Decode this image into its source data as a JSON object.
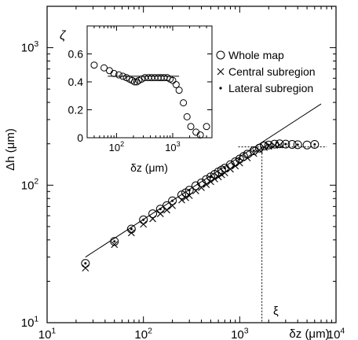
{
  "chart_data": [
    {
      "type": "scatter",
      "xscale": "log",
      "yscale": "log",
      "xlim": [
        10,
        10000
      ],
      "ylim": [
        10,
        2000
      ],
      "xlabel": "δz (μm)",
      "ylabel": "Δh (μm)",
      "xticks": [
        {
          "value": 10,
          "base": "10",
          "exp": "1"
        },
        {
          "value": 100,
          "base": "10",
          "exp": "2"
        },
        {
          "value": 1000,
          "base": "10",
          "exp": "3"
        },
        {
          "value": 10000,
          "base": "10",
          "exp": "4"
        }
      ],
      "yticks": [
        {
          "value": 10,
          "base": "10",
          "exp": "1"
        },
        {
          "value": 100,
          "base": "10",
          "exp": "2"
        },
        {
          "value": 1000,
          "base": "10",
          "exp": "3"
        }
      ],
      "legend": {
        "placement": "top-right",
        "entries": [
          "Whole map",
          "Central subregion",
          "Lateral subregion"
        ]
      },
      "series": [
        {
          "name": "Whole map",
          "marker": "circle",
          "points": [
            [
              25,
              27
            ],
            [
              50,
              39
            ],
            [
              75,
              48
            ],
            [
              100,
              56
            ],
            [
              125,
              62
            ],
            [
              150,
              67
            ],
            [
              175,
              71
            ],
            [
              200,
              77
            ],
            [
              250,
              85
            ],
            [
              275,
              88
            ],
            [
              300,
              92
            ],
            [
              350,
              99
            ],
            [
              400,
              104
            ],
            [
              450,
              110
            ],
            [
              500,
              115
            ],
            [
              550,
              120
            ],
            [
              600,
              125
            ],
            [
              650,
              129
            ],
            [
              700,
              133
            ],
            [
              800,
              141
            ],
            [
              900,
              148
            ],
            [
              1000,
              155
            ],
            [
              1100,
              162
            ],
            [
              1200,
              168
            ],
            [
              1400,
              178
            ],
            [
              1600,
              186
            ],
            [
              1800,
              193
            ],
            [
              2000,
              196
            ],
            [
              2300,
              199
            ],
            [
              2600,
              200
            ],
            [
              3000,
              199
            ],
            [
              3500,
              198
            ],
            [
              4000,
              197
            ],
            [
              5000,
              196
            ],
            [
              6000,
              198
            ]
          ]
        },
        {
          "name": "Central subregion",
          "marker": "cross",
          "points": [
            [
              25,
              25
            ],
            [
              50,
              37
            ],
            [
              75,
              45
            ],
            [
              100,
              52
            ],
            [
              125,
              57
            ],
            [
              150,
              62
            ],
            [
              175,
              66
            ],
            [
              200,
              71
            ],
            [
              250,
              78
            ],
            [
              275,
              81
            ],
            [
              300,
              84
            ],
            [
              350,
              91
            ],
            [
              400,
              96
            ],
            [
              450,
              101
            ],
            [
              500,
              106
            ],
            [
              550,
              111
            ],
            [
              600,
              115
            ],
            [
              650,
              119
            ],
            [
              700,
              123
            ],
            [
              800,
              131
            ],
            [
              900,
              138
            ],
            [
              1000,
              145
            ],
            [
              1200,
              158
            ],
            [
              1400,
              170
            ],
            [
              1600,
              180
            ],
            [
              1800,
              188
            ],
            [
              2000,
              192
            ],
            [
              2300,
              195
            ],
            [
              2600,
              196
            ]
          ]
        },
        {
          "name": "Lateral subregion",
          "marker": "dot",
          "points": [
            [
              25,
              27
            ],
            [
              50,
              39
            ],
            [
              75,
              48
            ],
            [
              100,
              56
            ],
            [
              150,
              67
            ],
            [
              200,
              77
            ],
            [
              300,
              92
            ],
            [
              500,
              115
            ],
            [
              700,
              133
            ],
            [
              1000,
              155
            ],
            [
              1400,
              178
            ],
            [
              2000,
              196
            ],
            [
              3000,
              199
            ],
            [
              4000,
              197
            ],
            [
              6000,
              198
            ]
          ]
        }
      ],
      "fit_line": {
        "x": [
          25,
          7000
        ],
        "y": [
          30,
          390
        ]
      },
      "crossover": {
        "label": "ξ",
        "x": 1700,
        "y": 190,
        "plateau_x_end": 8000
      }
    },
    {
      "type": "scatter",
      "inset": true,
      "xscale": "log",
      "yscale": "linear",
      "xlim": [
        30,
        5000
      ],
      "ylim": [
        0,
        0.8
      ],
      "xlabel": "δz (μm)",
      "ylabel": "ζ",
      "xticks": [
        {
          "value": 100,
          "base": "10",
          "exp": "2"
        },
        {
          "value": 1000,
          "base": "10",
          "exp": "3"
        }
      ],
      "yticks": [
        {
          "value": 0,
          "label": "0"
        },
        {
          "value": 0.2,
          "label": "0.2"
        },
        {
          "value": 0.4,
          "label": "0.4"
        },
        {
          "value": 0.6,
          "label": "0.6"
        }
      ],
      "series": [
        {
          "marker": "circle",
          "points": [
            [
              40,
              0.52
            ],
            [
              60,
              0.5
            ],
            [
              75,
              0.48
            ],
            [
              90,
              0.46
            ],
            [
              110,
              0.45
            ],
            [
              130,
              0.44
            ],
            [
              150,
              0.43
            ],
            [
              170,
              0.42
            ],
            [
              190,
              0.41
            ],
            [
              210,
              0.4
            ],
            [
              230,
              0.4
            ],
            [
              250,
              0.41
            ],
            [
              280,
              0.42
            ],
            [
              320,
              0.43
            ],
            [
              370,
              0.43
            ],
            [
              420,
              0.43
            ],
            [
              480,
              0.43
            ],
            [
              550,
              0.43
            ],
            [
              620,
              0.43
            ],
            [
              700,
              0.43
            ],
            [
              800,
              0.43
            ],
            [
              900,
              0.42
            ],
            [
              1000,
              0.41
            ],
            [
              1150,
              0.38
            ],
            [
              1300,
              0.34
            ],
            [
              1550,
              0.25
            ],
            [
              1800,
              0.15
            ],
            [
              2100,
              0.08
            ],
            [
              2600,
              0.04
            ],
            [
              3100,
              0.02
            ],
            [
              4000,
              0.08
            ]
          ]
        }
      ],
      "fit_line": {
        "x": [
          70,
          1300
        ],
        "y": [
          0.44,
          0.44
        ]
      }
    }
  ]
}
